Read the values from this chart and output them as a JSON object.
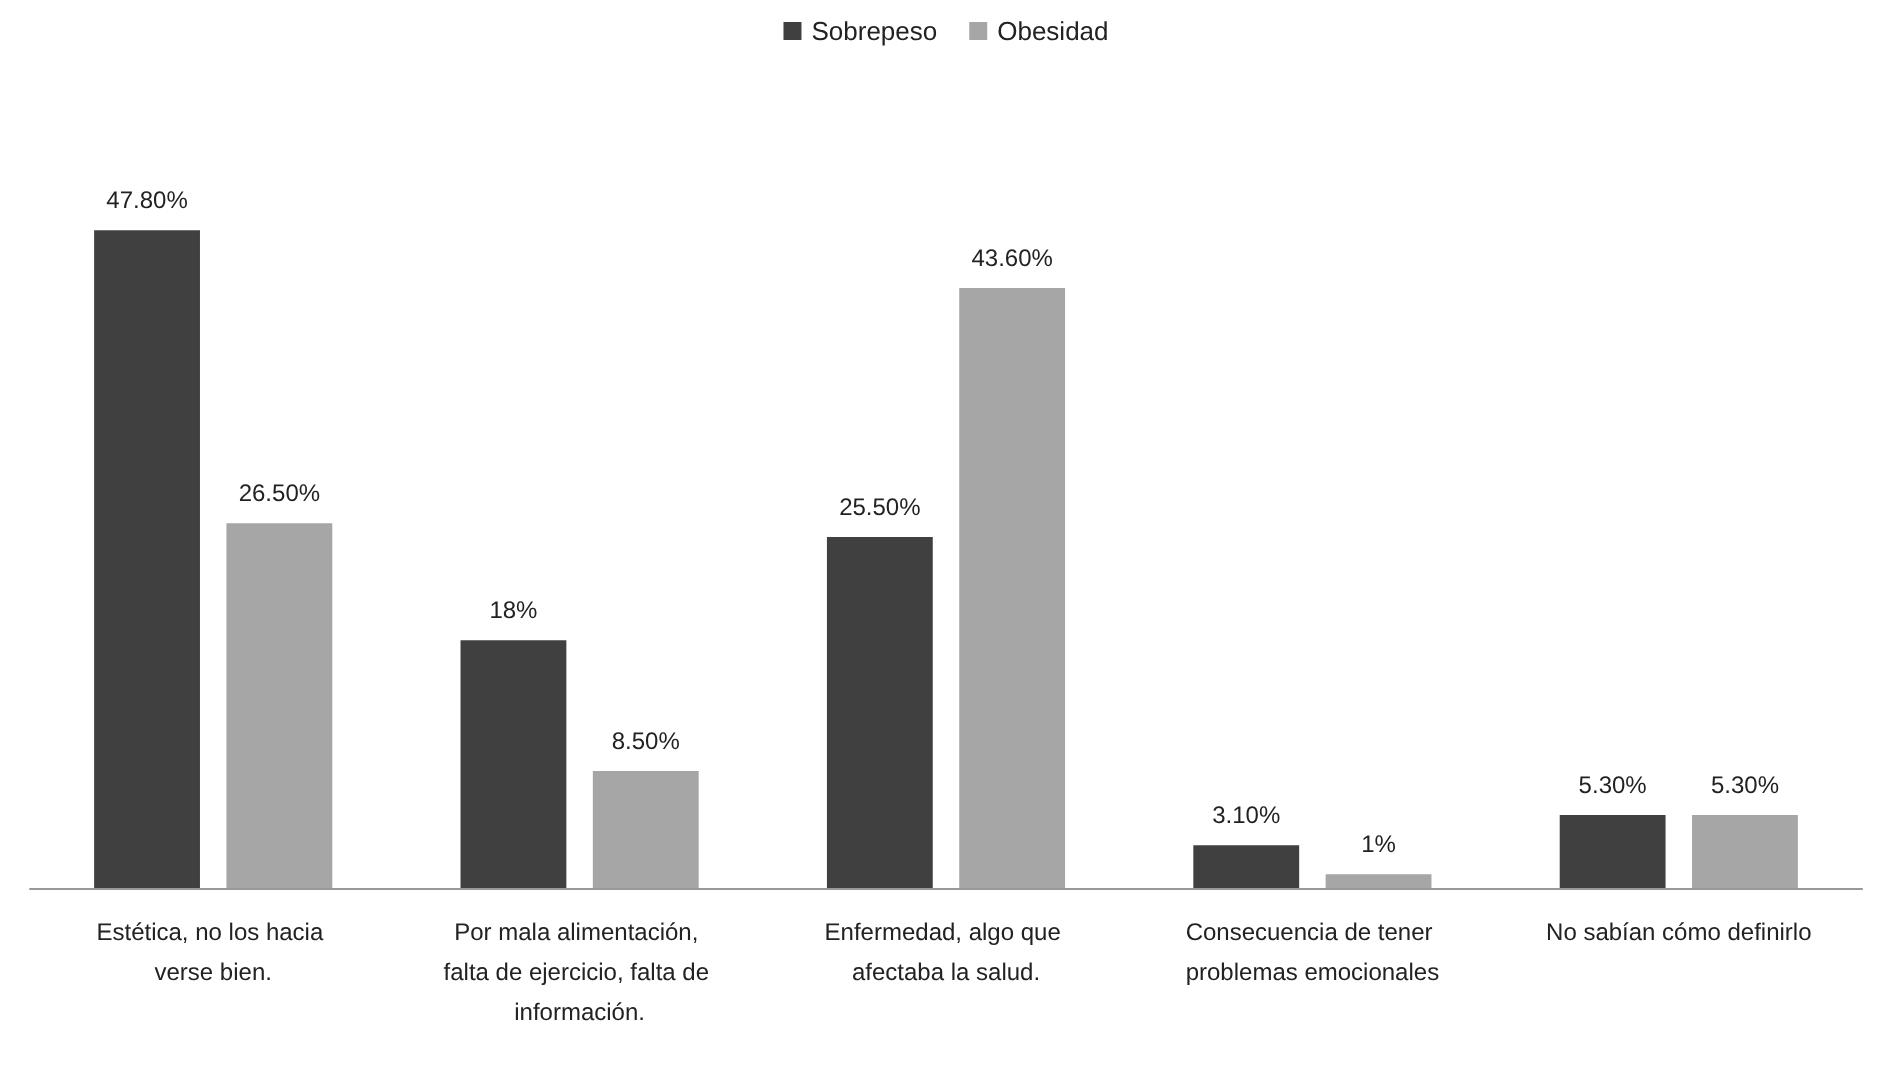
{
  "chart_data": {
    "type": "bar",
    "categories": [
      "Estética, no los hacia verse bien.",
      "Por mala alimentación, falta de ejercicio, falta de información.",
      "Enfermedad, algo que afectaba la salud.",
      "Consecuencia de tener problemas emocionales",
      "No sabían cómo definirlo"
    ],
    "series": [
      {
        "name": "Sobrepeso",
        "color": "#404040",
        "values": [
          47.8,
          18,
          25.5,
          3.1,
          5.3
        ],
        "value_labels": [
          "47.80%",
          "18%",
          "25.50%",
          "3.10%",
          "5.30%"
        ]
      },
      {
        "name": "Obesidad",
        "color": "#a6a6a6",
        "values": [
          26.5,
          8.5,
          43.6,
          1,
          5.3
        ],
        "value_labels": [
          "26.50%",
          "8.50%",
          "43.60%",
          "1%",
          "5.30%"
        ]
      }
    ],
    "legend": "top",
    "tick_labels": "x"
  }
}
